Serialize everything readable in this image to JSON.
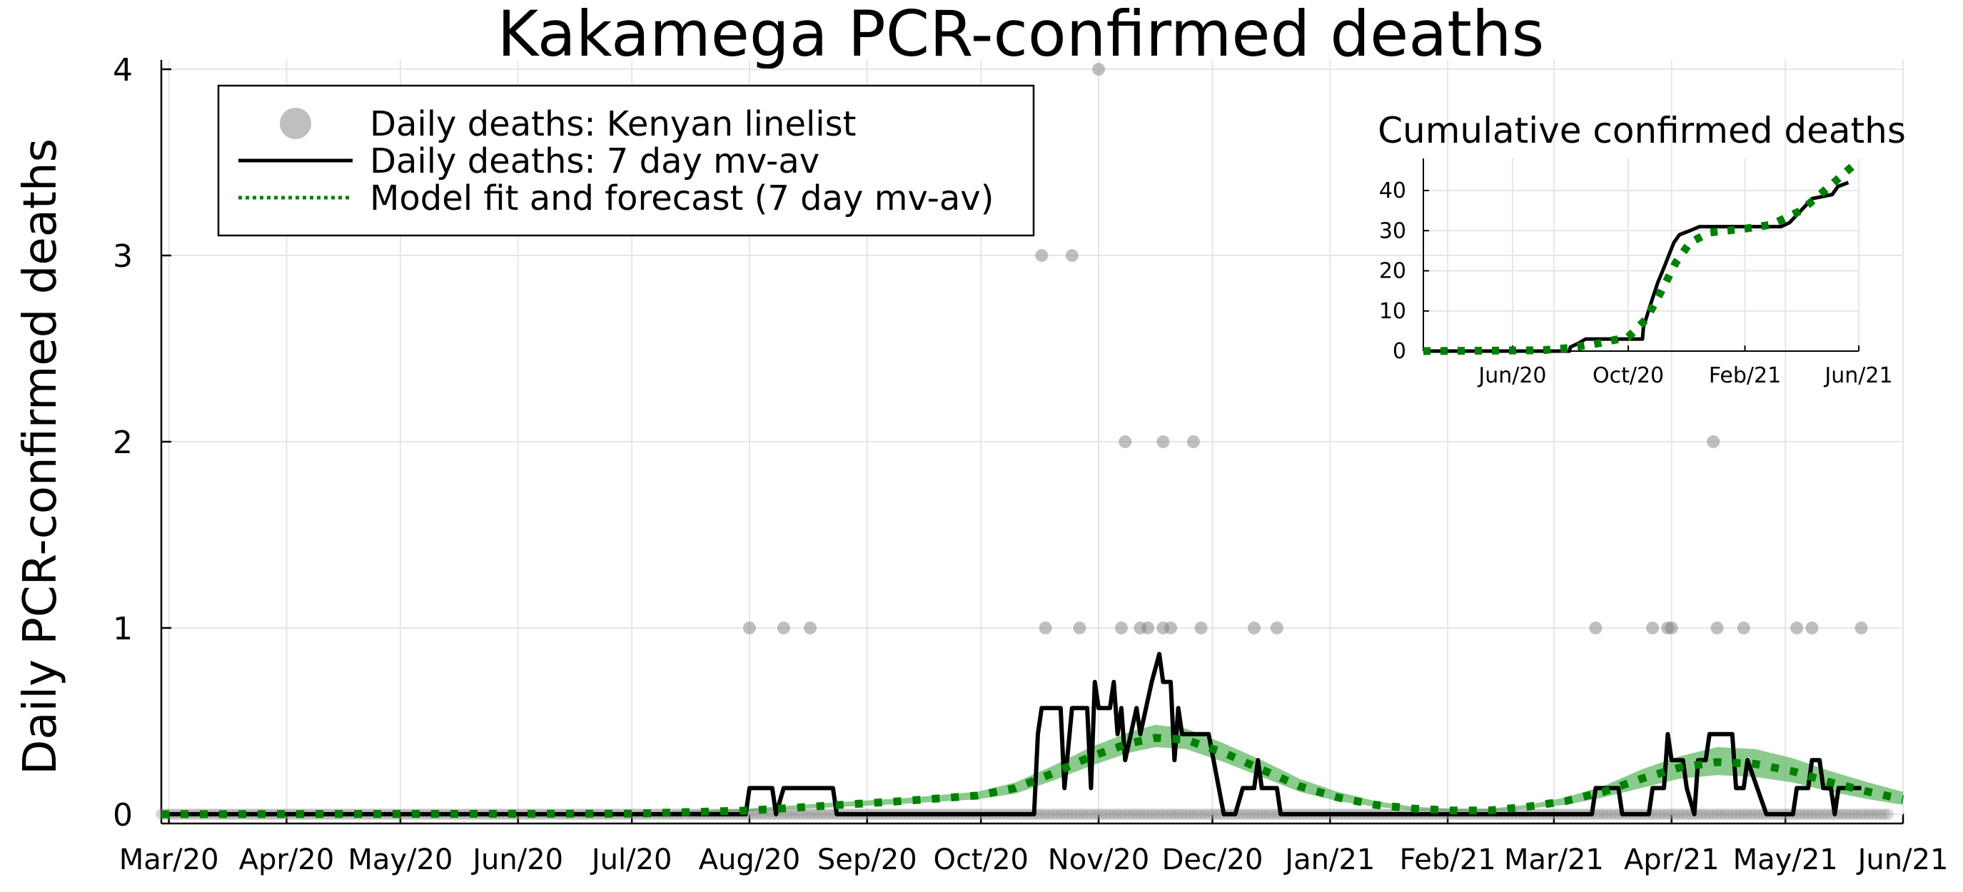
{
  "chart_data": {
    "type": "line",
    "title": "Kakamega PCR-confirmed deaths",
    "ylabel": "Daily PCR-confirmed deaths",
    "xlabel": "",
    "x_start": "2020-02-28",
    "x_range": [
      "2020-02-28",
      "2021-06-01"
    ],
    "ylim": [
      -0.05,
      4.05
    ],
    "yticks": [
      0,
      1,
      2,
      3,
      4
    ],
    "xticks": [
      {
        "date": "2020-03-01",
        "label": "Mar/20"
      },
      {
        "date": "2020-04-01",
        "label": "Apr/20"
      },
      {
        "date": "2020-05-01",
        "label": "May/20"
      },
      {
        "date": "2020-06-01",
        "label": "Jun/20"
      },
      {
        "date": "2020-07-01",
        "label": "Jul/20"
      },
      {
        "date": "2020-08-01",
        "label": "Aug/20"
      },
      {
        "date": "2020-09-01",
        "label": "Sep/20"
      },
      {
        "date": "2020-10-01",
        "label": "Oct/20"
      },
      {
        "date": "2020-11-01",
        "label": "Nov/20"
      },
      {
        "date": "2020-12-01",
        "label": "Dec/20"
      },
      {
        "date": "2021-01-01",
        "label": "Jan/21"
      },
      {
        "date": "2021-02-01",
        "label": "Feb/21"
      },
      {
        "date": "2021-03-01",
        "label": "Mar/21"
      },
      {
        "date": "2021-04-01",
        "label": "Apr/21"
      },
      {
        "date": "2021-05-01",
        "label": "May/21"
      },
      {
        "date": "2021-06-01",
        "label": "Jun/21"
      }
    ],
    "grid": true,
    "legend_position": "top-left",
    "colors": {
      "scatter": "#808080",
      "line": "#000000",
      "model": "#008000",
      "band": "#4caf50"
    },
    "series": [
      {
        "name": "Daily deaths: Kenyan linelist",
        "kind": "scatter",
        "points": [
          {
            "date": "2020-08-01",
            "y": 1
          },
          {
            "date": "2020-08-10",
            "y": 1
          },
          {
            "date": "2020-08-17",
            "y": 1
          },
          {
            "date": "2020-10-17",
            "y": 3
          },
          {
            "date": "2020-10-18",
            "y": 1
          },
          {
            "date": "2020-10-25",
            "y": 3
          },
          {
            "date": "2020-10-27",
            "y": 1
          },
          {
            "date": "2020-11-01",
            "y": 4
          },
          {
            "date": "2020-11-07",
            "y": 1
          },
          {
            "date": "2020-11-08",
            "y": 2
          },
          {
            "date": "2020-11-12",
            "y": 1
          },
          {
            "date": "2020-11-14",
            "y": 1
          },
          {
            "date": "2020-11-18",
            "y": 2
          },
          {
            "date": "2020-11-18",
            "y": 1
          },
          {
            "date": "2020-11-20",
            "y": 1
          },
          {
            "date": "2020-11-26",
            "y": 2
          },
          {
            "date": "2020-11-28",
            "y": 1
          },
          {
            "date": "2020-12-12",
            "y": 1
          },
          {
            "date": "2020-12-18",
            "y": 1
          },
          {
            "date": "2021-03-12",
            "y": 1
          },
          {
            "date": "2021-03-27",
            "y": 1
          },
          {
            "date": "2021-03-31",
            "y": 1
          },
          {
            "date": "2021-04-01",
            "y": 1
          },
          {
            "date": "2021-04-12",
            "y": 2
          },
          {
            "date": "2021-04-13",
            "y": 1
          },
          {
            "date": "2021-04-20",
            "y": 1
          },
          {
            "date": "2021-05-04",
            "y": 1
          },
          {
            "date": "2021-05-08",
            "y": 1
          },
          {
            "date": "2021-05-21",
            "y": 1
          }
        ]
      },
      {
        "name": "Daily deaths: 7 day mv-av",
        "kind": "line",
        "points": [
          {
            "date": "2020-02-28",
            "y": 0
          },
          {
            "date": "2020-07-31",
            "y": 0
          },
          {
            "date": "2020-08-01",
            "y": 0.14
          },
          {
            "date": "2020-08-07",
            "y": 0.14
          },
          {
            "date": "2020-08-08",
            "y": 0
          },
          {
            "date": "2020-08-10",
            "y": 0.14
          },
          {
            "date": "2020-08-23",
            "y": 0.14
          },
          {
            "date": "2020-08-24",
            "y": 0
          },
          {
            "date": "2020-10-15",
            "y": 0
          },
          {
            "date": "2020-10-16",
            "y": 0.43
          },
          {
            "date": "2020-10-17",
            "y": 0.57
          },
          {
            "date": "2020-10-22",
            "y": 0.57
          },
          {
            "date": "2020-10-23",
            "y": 0.14
          },
          {
            "date": "2020-10-25",
            "y": 0.57
          },
          {
            "date": "2020-10-29",
            "y": 0.57
          },
          {
            "date": "2020-10-30",
            "y": 0.14
          },
          {
            "date": "2020-10-31",
            "y": 0.71
          },
          {
            "date": "2020-11-01",
            "y": 0.57
          },
          {
            "date": "2020-11-04",
            "y": 0.57
          },
          {
            "date": "2020-11-05",
            "y": 0.71
          },
          {
            "date": "2020-11-06",
            "y": 0.43
          },
          {
            "date": "2020-11-07",
            "y": 0.57
          },
          {
            "date": "2020-11-08",
            "y": 0.29
          },
          {
            "date": "2020-11-11",
            "y": 0.57
          },
          {
            "date": "2020-11-12",
            "y": 0.43
          },
          {
            "date": "2020-11-15",
            "y": 0.71
          },
          {
            "date": "2020-11-17",
            "y": 0.86
          },
          {
            "date": "2020-11-18",
            "y": 0.71
          },
          {
            "date": "2020-11-20",
            "y": 0.71
          },
          {
            "date": "2020-11-21",
            "y": 0.29
          },
          {
            "date": "2020-11-22",
            "y": 0.57
          },
          {
            "date": "2020-11-23",
            "y": 0.43
          },
          {
            "date": "2020-11-30",
            "y": 0.43
          },
          {
            "date": "2020-12-04",
            "y": 0
          },
          {
            "date": "2020-12-07",
            "y": 0
          },
          {
            "date": "2020-12-09",
            "y": 0.14
          },
          {
            "date": "2020-12-12",
            "y": 0.14
          },
          {
            "date": "2020-12-13",
            "y": 0.29
          },
          {
            "date": "2020-12-14",
            "y": 0.14
          },
          {
            "date": "2020-12-18",
            "y": 0.14
          },
          {
            "date": "2020-12-19",
            "y": 0
          },
          {
            "date": "2021-03-11",
            "y": 0
          },
          {
            "date": "2021-03-12",
            "y": 0.14
          },
          {
            "date": "2021-03-18",
            "y": 0.14
          },
          {
            "date": "2021-03-19",
            "y": 0
          },
          {
            "date": "2021-03-26",
            "y": 0
          },
          {
            "date": "2021-03-27",
            "y": 0.14
          },
          {
            "date": "2021-03-30",
            "y": 0.14
          },
          {
            "date": "2021-03-31",
            "y": 0.43
          },
          {
            "date": "2021-04-01",
            "y": 0.29
          },
          {
            "date": "2021-04-04",
            "y": 0.29
          },
          {
            "date": "2021-04-05",
            "y": 0.14
          },
          {
            "date": "2021-04-07",
            "y": 0
          },
          {
            "date": "2021-04-08",
            "y": 0.29
          },
          {
            "date": "2021-04-10",
            "y": 0.29
          },
          {
            "date": "2021-04-11",
            "y": 0.43
          },
          {
            "date": "2021-04-17",
            "y": 0.43
          },
          {
            "date": "2021-04-18",
            "y": 0.14
          },
          {
            "date": "2021-04-20",
            "y": 0.14
          },
          {
            "date": "2021-04-21",
            "y": 0.29
          },
          {
            "date": "2021-04-26",
            "y": 0
          },
          {
            "date": "2021-05-03",
            "y": 0
          },
          {
            "date": "2021-05-04",
            "y": 0.14
          },
          {
            "date": "2021-05-07",
            "y": 0.14
          },
          {
            "date": "2021-05-08",
            "y": 0.29
          },
          {
            "date": "2021-05-10",
            "y": 0.29
          },
          {
            "date": "2021-05-11",
            "y": 0.14
          },
          {
            "date": "2021-05-13",
            "y": 0.14
          },
          {
            "date": "2021-05-14",
            "y": 0
          },
          {
            "date": "2021-05-15",
            "y": 0.14
          },
          {
            "date": "2021-05-21",
            "y": 0.14
          }
        ]
      },
      {
        "name": "Model fit and forecast (7 day mv-av)",
        "kind": "dotted-line",
        "points": [
          {
            "date": "2020-02-28",
            "y": 0
          },
          {
            "date": "2020-07-01",
            "y": 0.003
          },
          {
            "date": "2020-08-01",
            "y": 0.02
          },
          {
            "date": "2020-08-21",
            "y": 0.045
          },
          {
            "date": "2020-09-10",
            "y": 0.07
          },
          {
            "date": "2020-09-30",
            "y": 0.1
          },
          {
            "date": "2020-10-10",
            "y": 0.14
          },
          {
            "date": "2020-10-20",
            "y": 0.22
          },
          {
            "date": "2020-10-30",
            "y": 0.31
          },
          {
            "date": "2020-11-09",
            "y": 0.38
          },
          {
            "date": "2020-11-16",
            "y": 0.41
          },
          {
            "date": "2020-11-24",
            "y": 0.4
          },
          {
            "date": "2020-12-04",
            "y": 0.33
          },
          {
            "date": "2020-12-14",
            "y": 0.24
          },
          {
            "date": "2020-12-24",
            "y": 0.15
          },
          {
            "date": "2021-01-03",
            "y": 0.09
          },
          {
            "date": "2021-01-13",
            "y": 0.05
          },
          {
            "date": "2021-01-23",
            "y": 0.03
          },
          {
            "date": "2021-02-02",
            "y": 0.02
          },
          {
            "date": "2021-02-12",
            "y": 0.02
          },
          {
            "date": "2021-02-22",
            "y": 0.04
          },
          {
            "date": "2021-03-04",
            "y": 0.07
          },
          {
            "date": "2021-03-14",
            "y": 0.12
          },
          {
            "date": "2021-03-24",
            "y": 0.19
          },
          {
            "date": "2021-04-03",
            "y": 0.25
          },
          {
            "date": "2021-04-13",
            "y": 0.28
          },
          {
            "date": "2021-04-23",
            "y": 0.27
          },
          {
            "date": "2021-05-03",
            "y": 0.23
          },
          {
            "date": "2021-05-13",
            "y": 0.17
          },
          {
            "date": "2021-05-23",
            "y": 0.12
          },
          {
            "date": "2021-06-01",
            "y": 0.08
          }
        ],
        "band": [
          {
            "date": "2020-02-28",
            "lo": 0,
            "hi": 0
          },
          {
            "date": "2020-07-01",
            "lo": 0.002,
            "hi": 0.006
          },
          {
            "date": "2020-08-01",
            "lo": 0.015,
            "hi": 0.03
          },
          {
            "date": "2020-08-21",
            "lo": 0.035,
            "hi": 0.06
          },
          {
            "date": "2020-09-10",
            "lo": 0.055,
            "hi": 0.085
          },
          {
            "date": "2020-09-30",
            "lo": 0.08,
            "hi": 0.12
          },
          {
            "date": "2020-10-10",
            "lo": 0.11,
            "hi": 0.17
          },
          {
            "date": "2020-10-20",
            "lo": 0.18,
            "hi": 0.26
          },
          {
            "date": "2020-10-30",
            "lo": 0.26,
            "hi": 0.36
          },
          {
            "date": "2020-11-09",
            "lo": 0.33,
            "hi": 0.44
          },
          {
            "date": "2020-11-16",
            "lo": 0.36,
            "hi": 0.48
          },
          {
            "date": "2020-11-24",
            "lo": 0.35,
            "hi": 0.46
          },
          {
            "date": "2020-12-04",
            "lo": 0.28,
            "hi": 0.38
          },
          {
            "date": "2020-12-14",
            "lo": 0.2,
            "hi": 0.29
          },
          {
            "date": "2020-12-24",
            "lo": 0.12,
            "hi": 0.19
          },
          {
            "date": "2021-01-03",
            "lo": 0.07,
            "hi": 0.12
          },
          {
            "date": "2021-01-13",
            "lo": 0.04,
            "hi": 0.07
          },
          {
            "date": "2021-01-23",
            "lo": 0.02,
            "hi": 0.04
          },
          {
            "date": "2021-02-02",
            "lo": 0.015,
            "hi": 0.03
          },
          {
            "date": "2021-02-12",
            "lo": 0.015,
            "hi": 0.03
          },
          {
            "date": "2021-02-22",
            "lo": 0.03,
            "hi": 0.05
          },
          {
            "date": "2021-03-04",
            "lo": 0.05,
            "hi": 0.09
          },
          {
            "date": "2021-03-14",
            "lo": 0.09,
            "hi": 0.15
          },
          {
            "date": "2021-03-24",
            "lo": 0.14,
            "hi": 0.24
          },
          {
            "date": "2021-04-03",
            "lo": 0.19,
            "hi": 0.31
          },
          {
            "date": "2021-04-13",
            "lo": 0.21,
            "hi": 0.36
          },
          {
            "date": "2021-04-23",
            "lo": 0.2,
            "hi": 0.35
          },
          {
            "date": "2021-05-03",
            "lo": 0.17,
            "hi": 0.3
          },
          {
            "date": "2021-05-13",
            "lo": 0.12,
            "hi": 0.23
          },
          {
            "date": "2021-05-23",
            "lo": 0.08,
            "hi": 0.17
          },
          {
            "date": "2021-06-01",
            "lo": 0.05,
            "hi": 0.12
          }
        ]
      }
    ],
    "inset": {
      "title": "Cumulative confirmed deaths",
      "x_range": [
        "2020-02-28",
        "2021-06-01"
      ],
      "ylim": [
        0,
        48
      ],
      "yticks": [
        0,
        10,
        20,
        30,
        40
      ],
      "xticks": [
        {
          "date": "2020-06-01",
          "label": "Jun/20"
        },
        {
          "date": "2020-10-01",
          "label": "Oct/20"
        },
        {
          "date": "2021-02-01",
          "label": "Feb/21"
        },
        {
          "date": "2021-06-01",
          "label": "Jun/21"
        }
      ],
      "observed": [
        {
          "date": "2020-02-28",
          "y": 0
        },
        {
          "date": "2020-07-31",
          "y": 0
        },
        {
          "date": "2020-08-01",
          "y": 1
        },
        {
          "date": "2020-08-10",
          "y": 2
        },
        {
          "date": "2020-08-17",
          "y": 3
        },
        {
          "date": "2020-10-16",
          "y": 3
        },
        {
          "date": "2020-10-17",
          "y": 6
        },
        {
          "date": "2020-10-25",
          "y": 12
        },
        {
          "date": "2020-11-01",
          "y": 17
        },
        {
          "date": "2020-11-08",
          "y": 21
        },
        {
          "date": "2020-11-18",
          "y": 27
        },
        {
          "date": "2020-11-24",
          "y": 29
        },
        {
          "date": "2020-12-05",
          "y": 30
        },
        {
          "date": "2020-12-15",
          "y": 31
        },
        {
          "date": "2021-03-11",
          "y": 31
        },
        {
          "date": "2021-03-20",
          "y": 32
        },
        {
          "date": "2021-04-01",
          "y": 35
        },
        {
          "date": "2021-04-13",
          "y": 38
        },
        {
          "date": "2021-05-04",
          "y": 39
        },
        {
          "date": "2021-05-10",
          "y": 41
        },
        {
          "date": "2021-05-21",
          "y": 42
        }
      ],
      "model": [
        {
          "date": "2020-02-28",
          "y": 0
        },
        {
          "date": "2020-07-01",
          "y": 0.2
        },
        {
          "date": "2020-08-01",
          "y": 0.8
        },
        {
          "date": "2020-09-01",
          "y": 2
        },
        {
          "date": "2020-10-01",
          "y": 3.5
        },
        {
          "date": "2020-10-20",
          "y": 8
        },
        {
          "date": "2020-11-05",
          "y": 15
        },
        {
          "date": "2020-11-20",
          "y": 22
        },
        {
          "date": "2020-12-05",
          "y": 27
        },
        {
          "date": "2020-12-25",
          "y": 29.5
        },
        {
          "date": "2021-02-01",
          "y": 30.5
        },
        {
          "date": "2021-03-01",
          "y": 31.5
        },
        {
          "date": "2021-04-01",
          "y": 35
        },
        {
          "date": "2021-05-01",
          "y": 41
        },
        {
          "date": "2021-05-25",
          "y": 46
        }
      ]
    }
  }
}
